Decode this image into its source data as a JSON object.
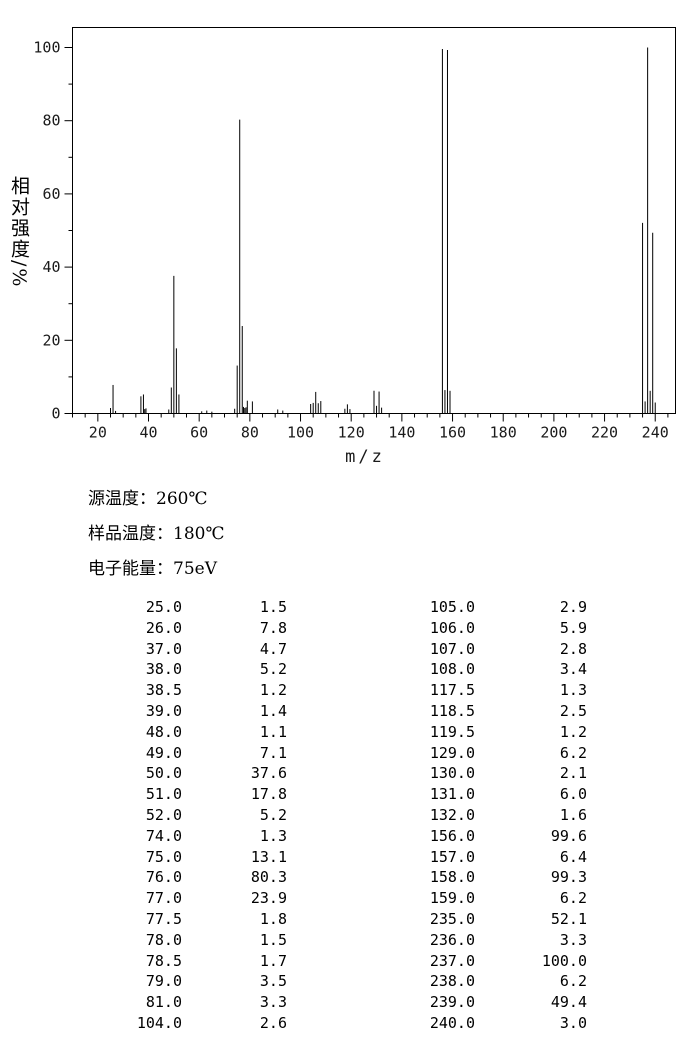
{
  "chart_data": {
    "type": "bar",
    "subtype": "mass-spectrum-stick-plot",
    "title": "",
    "xlabel": "m/z",
    "ylabel": "相对强度/%",
    "xlim": [
      10,
      248
    ],
    "ylim": [
      0,
      106
    ],
    "x_major_tick_step": 20,
    "x_minor_tick_step": 5,
    "y_major_tick_step": 20,
    "y_minor_tick_step": 10,
    "x_ticks": [
      20,
      40,
      60,
      80,
      100,
      120,
      140,
      160,
      180,
      200,
      220,
      240
    ],
    "y_ticks": [
      0,
      20,
      40,
      60,
      80,
      100
    ],
    "grid": false,
    "legend": "none",
    "line_color": "#000000",
    "background_color": "#ffffff",
    "peaks": [
      [
        25.0,
        1.5
      ],
      [
        26.0,
        7.8
      ],
      [
        37.0,
        4.7
      ],
      [
        38.0,
        5.2
      ],
      [
        38.5,
        1.2
      ],
      [
        39.0,
        1.4
      ],
      [
        48.0,
        1.1
      ],
      [
        49.0,
        7.1
      ],
      [
        50.0,
        37.6
      ],
      [
        51.0,
        17.8
      ],
      [
        52.0,
        5.2
      ],
      [
        74.0,
        1.3
      ],
      [
        75.0,
        13.1
      ],
      [
        76.0,
        80.3
      ],
      [
        77.0,
        23.9
      ],
      [
        77.5,
        1.8
      ],
      [
        78.0,
        1.5
      ],
      [
        78.5,
        1.7
      ],
      [
        79.0,
        3.5
      ],
      [
        81.0,
        3.3
      ],
      [
        104.0,
        2.6
      ],
      [
        105.0,
        2.9
      ],
      [
        106.0,
        5.9
      ],
      [
        107.0,
        2.8
      ],
      [
        108.0,
        3.4
      ],
      [
        117.5,
        1.3
      ],
      [
        118.5,
        2.5
      ],
      [
        119.5,
        1.2
      ],
      [
        129.0,
        6.2
      ],
      [
        130.0,
        2.1
      ],
      [
        131.0,
        6.0
      ],
      [
        132.0,
        1.6
      ],
      [
        156.0,
        99.6
      ],
      [
        157.0,
        6.4
      ],
      [
        158.0,
        99.3
      ],
      [
        159.0,
        6.2
      ],
      [
        235.0,
        52.1
      ],
      [
        236.0,
        3.3
      ],
      [
        237.0,
        100.0
      ],
      [
        238.0,
        6.2
      ],
      [
        239.0,
        49.4
      ],
      [
        240.0,
        3.0
      ]
    ],
    "minor_unlabeled_peaks": [
      [
        27.0,
        0.7
      ],
      [
        61.0,
        0.6
      ],
      [
        63.0,
        0.8
      ],
      [
        65.0,
        0.5
      ],
      [
        91.0,
        1.1
      ],
      [
        93.0,
        0.8
      ]
    ]
  },
  "conditions": {
    "lines": [
      "源温度：260℃",
      "样品温度：180℃",
      "电子能量：75eV"
    ]
  },
  "peak_table": {
    "left": [
      [
        "25.0",
        "1.5"
      ],
      [
        "26.0",
        "7.8"
      ],
      [
        "37.0",
        "4.7"
      ],
      [
        "38.0",
        "5.2"
      ],
      [
        "38.5",
        "1.2"
      ],
      [
        "39.0",
        "1.4"
      ],
      [
        "48.0",
        "1.1"
      ],
      [
        "49.0",
        "7.1"
      ],
      [
        "50.0",
        "37.6"
      ],
      [
        "51.0",
        "17.8"
      ],
      [
        "52.0",
        "5.2"
      ],
      [
        "74.0",
        "1.3"
      ],
      [
        "75.0",
        "13.1"
      ],
      [
        "76.0",
        "80.3"
      ],
      [
        "77.0",
        "23.9"
      ],
      [
        "77.5",
        "1.8"
      ],
      [
        "78.0",
        "1.5"
      ],
      [
        "78.5",
        "1.7"
      ],
      [
        "79.0",
        "3.5"
      ],
      [
        "81.0",
        "3.3"
      ],
      [
        "104.0",
        "2.6"
      ]
    ],
    "right": [
      [
        "105.0",
        "2.9"
      ],
      [
        "106.0",
        "5.9"
      ],
      [
        "107.0",
        "2.8"
      ],
      [
        "108.0",
        "3.4"
      ],
      [
        "117.5",
        "1.3"
      ],
      [
        "118.5",
        "2.5"
      ],
      [
        "119.5",
        "1.2"
      ],
      [
        "129.0",
        "6.2"
      ],
      [
        "130.0",
        "2.1"
      ],
      [
        "131.0",
        "6.0"
      ],
      [
        "132.0",
        "1.6"
      ],
      [
        "156.0",
        "99.6"
      ],
      [
        "157.0",
        "6.4"
      ],
      [
        "158.0",
        "99.3"
      ],
      [
        "159.0",
        "6.2"
      ],
      [
        "235.0",
        "52.1"
      ],
      [
        "236.0",
        "3.3"
      ],
      [
        "237.0",
        "100.0"
      ],
      [
        "238.0",
        "6.2"
      ],
      [
        "239.0",
        "49.4"
      ],
      [
        "240.0",
        "3.0"
      ]
    ]
  }
}
